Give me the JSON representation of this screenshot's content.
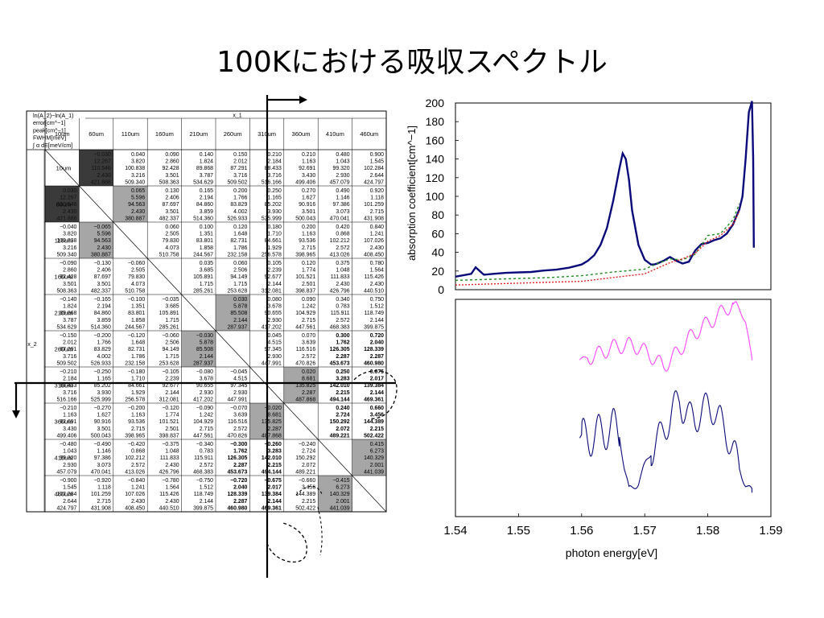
{
  "title": "100Kにおける吸収スペクトル",
  "table": {
    "corner_lines": [
      "ln(A_2)−ln(A_1)",
      "error[cm^−1]",
      "peak[cm^−1]",
      "FWHM[meV]",
      "∫ α dE[meV/cm]"
    ],
    "col_axis_label": "x_1",
    "row_axis_label": "x_2",
    "headers": [
      "10um",
      "60um",
      "110um",
      "160um",
      "210um",
      "260um",
      "310um",
      "360um",
      "410um",
      "460um"
    ],
    "cells": [
      [
        null,
        [
          "−0.030",
          "12.267",
          "110.546",
          "2.430",
          "421.888"
        ],
        [
          "0.040",
          "3.820",
          "100.838",
          "3.216",
          "509.340"
        ],
        [
          "0.090",
          "2.860",
          "92.428",
          "3.501",
          "508.363"
        ],
        [
          "0.140",
          "1.824",
          "89.868",
          "3.787",
          "534.629"
        ],
        [
          "0.150",
          "2.012",
          "87.291",
          "3.716",
          "509.502"
        ],
        [
          "0.210",
          "2.184",
          "88.433",
          "3.716",
          "516.166"
        ],
        [
          "0.210",
          "1.163",
          "92.691",
          "3.430",
          "499.406"
        ],
        [
          "0.480",
          "1.043",
          "99.320",
          "2.930",
          "457.079"
        ],
        [
          "0.900",
          "1.545",
          "102.284",
          "2.644",
          "424.797"
        ]
      ],
      [
        [
          "0.030",
          "12.267",
          "110.546",
          "2.430",
          "421.888"
        ],
        null,
        [
          "0.065",
          "5.596",
          "94.563",
          "2.430",
          "380.887"
        ],
        [
          "0.130",
          "2.406",
          "87.697",
          "3.501",
          "482.337"
        ],
        [
          "0.165",
          "2.194",
          "84.860",
          "3.859",
          "514.360"
        ],
        [
          "0.200",
          "1.766",
          "83.829",
          "4.002",
          "526.933"
        ],
        [
          "0.250",
          "1.165",
          "85.202",
          "3.930",
          "525.999"
        ],
        [
          "0.270",
          "1.627",
          "90.916",
          "3.501",
          "500.043"
        ],
        [
          "0.490",
          "1.146",
          "97.386",
          "3.073",
          "470.041"
        ],
        [
          "0.920",
          "1.118",
          "101.259",
          "2.715",
          "431.908"
        ]
      ],
      [
        [
          "−0.040",
          "3.820",
          "100.838",
          "3.216",
          "509.340"
        ],
        [
          "−0.065",
          "5.596",
          "94.563",
          "2.430",
          "380.887"
        ],
        null,
        [
          "0.060",
          "2.505",
          "79.830",
          "4.073",
          "510.758"
        ],
        [
          "0.100",
          "1.351",
          "83.801",
          "1.858",
          "244.567"
        ],
        [
          "0.120",
          "1.648",
          "82.731",
          "1.786",
          "232.158"
        ],
        [
          "0.180",
          "1.710",
          "84.661",
          "1.929",
          "256.578"
        ],
        [
          "0.200",
          "1.163",
          "93.536",
          "2.715",
          "398.965"
        ],
        [
          "0.420",
          "0.868",
          "102.212",
          "2.572",
          "413.026"
        ],
        [
          "0.840",
          "1.241",
          "107.026",
          "2.430",
          "408.450"
        ]
      ],
      [
        [
          "−0.090",
          "2.860",
          "92.428",
          "3.501",
          "508.363"
        ],
        [
          "−0.130",
          "2.406",
          "87.697",
          "3.501",
          "482.337"
        ],
        [
          "−0.060",
          "2.505",
          "79.830",
          "4.073",
          "510.758"
        ],
        null,
        [
          "0.035",
          "3.685",
          "105.891",
          "1.715",
          "285.261"
        ],
        [
          "0.060",
          "2.506",
          "94.149",
          "1.715",
          "253.628"
        ],
        [
          "0.105",
          "2.239",
          "92.677",
          "2.144",
          "312.081"
        ],
        [
          "0.120",
          "1.774",
          "101.521",
          "2.501",
          "398.837"
        ],
        [
          "0.375",
          "1.048",
          "111.833",
          "2.430",
          "426.796"
        ],
        [
          "0.780",
          "1.564",
          "115.426",
          "2.430",
          "440.510"
        ]
      ],
      [
        [
          "−0.140",
          "1.824",
          "89.868",
          "3.787",
          "534.629"
        ],
        [
          "−0.165",
          "2.194",
          "84.860",
          "3.859",
          "514.360"
        ],
        [
          "−0.100",
          "1.351",
          "83.801",
          "1.858",
          "244.567"
        ],
        [
          "−0.035",
          "3.685",
          "105.891",
          "1.715",
          "285.261"
        ],
        null,
        [
          "0.030",
          "5.878",
          "85.508",
          "2.144",
          "287.937"
        ],
        [
          "0.080",
          "3.678",
          "90.655",
          "2.930",
          "417.202"
        ],
        [
          "0.090",
          "1.242",
          "104.929",
          "2.715",
          "447.561"
        ],
        [
          "0.340",
          "0.783",
          "115.911",
          "2.572",
          "468.383"
        ],
        [
          "0.750",
          "1.512",
          "118.749",
          "2.144",
          "399.875"
        ]
      ],
      [
        [
          "−0.150",
          "2.012",
          "87.291",
          "3.716",
          "509.502"
        ],
        [
          "−0.200",
          "1.766",
          "83.829",
          "4.002",
          "526.933"
        ],
        [
          "−0.120",
          "1.648",
          "82.731",
          "1.786",
          "232.158"
        ],
        [
          "−0.060",
          "2.506",
          "94.149",
          "1.715",
          "253.628"
        ],
        [
          "−0.030",
          "5.878",
          "85.508",
          "2.144",
          "287.937"
        ],
        null,
        [
          "0.045",
          "4.515",
          "97.345",
          "2.930",
          "447.991"
        ],
        [
          "0.070",
          "3.639",
          "116.516",
          "2.572",
          "470.826"
        ],
        [
          "0.300",
          "1.762",
          "126.305",
          "2.287",
          "453.673"
        ],
        [
          "0.720",
          "2.040",
          "128.339",
          "2.287",
          "460.980"
        ]
      ],
      [
        [
          "−0.210",
          "2.184",
          "88.433",
          "3.716",
          "516.166"
        ],
        [
          "−0.250",
          "1.165",
          "85.202",
          "3.930",
          "525.999"
        ],
        [
          "−0.180",
          "1.710",
          "84.661",
          "1.929",
          "256.578"
        ],
        [
          "−0.105",
          "2.239",
          "92.677",
          "2.144",
          "312.081"
        ],
        [
          "−0.080",
          "3.678",
          "90.655",
          "2.930",
          "417.202"
        ],
        [
          "−0.045",
          "4.515",
          "97.345",
          "2.930",
          "447.991"
        ],
        null,
        [
          "0.020",
          "8.681",
          "135.825",
          "2.287",
          "487.868"
        ],
        [
          "0.250",
          "3.283",
          "142.010",
          "2.215",
          "494.144"
        ],
        [
          "0.675",
          "2.017",
          "139.384",
          "2.144",
          "469.361"
        ]
      ],
      [
        [
          "−0.210",
          "1.163",
          "92.691",
          "3.430",
          "499.406"
        ],
        [
          "−0.270",
          "1.627",
          "90.916",
          "3.501",
          "500.043"
        ],
        [
          "−0.200",
          "1.163",
          "93.536",
          "2.715",
          "398.965"
        ],
        [
          "−0.120",
          "1.774",
          "101.521",
          "2.501",
          "398.837"
        ],
        [
          "−0.090",
          "1.242",
          "104.929",
          "2.715",
          "447.561"
        ],
        [
          "−0.070",
          "3.639",
          "116.516",
          "2.572",
          "470.826"
        ],
        [
          "−0.020",
          "8.681",
          "135.825",
          "2.287",
          "487.868"
        ],
        null,
        [
          "0.240",
          "2.724",
          "150.292",
          "2.072",
          "489.221"
        ],
        [
          "0.660",
          "3.456",
          "144.389",
          "2.215",
          "502.422"
        ]
      ],
      [
        [
          "−0.480",
          "1.043",
          "99.320",
          "2.930",
          "457.079"
        ],
        [
          "−0.490",
          "1.146",
          "97.386",
          "3.073",
          "470.041"
        ],
        [
          "−0.420",
          "0.868",
          "102.212",
          "2.572",
          "413.026"
        ],
        [
          "−0.375",
          "1.048",
          "111.833",
          "2.430",
          "426.796"
        ],
        [
          "−0.340",
          "0.783",
          "115.911",
          "2.572",
          "468.383"
        ],
        [
          "−0.300",
          "1.762",
          "126.305",
          "2.287",
          "453.673"
        ],
        [
          "−0.260",
          "3.283",
          "142.010",
          "2.215",
          "494.144"
        ],
        [
          "−0.240",
          "2.724",
          "150.292",
          "2.072",
          "489.221"
        ],
        null,
        [
          "0.415",
          "6.273",
          "140.329",
          "2.001",
          "441.039"
        ]
      ],
      [
        [
          "−0.900",
          "1.545",
          "102.284",
          "2.644",
          "424.797"
        ],
        [
          "−0.920",
          "1.118",
          "101.259",
          "2.715",
          "431.908"
        ],
        [
          "−0.840",
          "1.241",
          "107.026",
          "2.430",
          "408.450"
        ],
        [
          "−0.780",
          "1.564",
          "115.426",
          "2.430",
          "440.510"
        ],
        [
          "−0.750",
          "1.512",
          "118.749",
          "2.144",
          "399.875"
        ],
        [
          "−0.720",
          "2.040",
          "128.339",
          "2.287",
          "460.980"
        ],
        [
          "−0.675",
          "2.017",
          "139.384",
          "2.144",
          "469.361"
        ],
        [
          "−0.660",
          "3.456",
          "144.389",
          "2.215",
          "502.422"
        ],
        [
          "−0.415",
          "6.273",
          "140.329",
          "2.001",
          "441.039"
        ],
        null
      ]
    ],
    "dark_cells": [
      [
        0,
        1
      ],
      [
        1,
        0
      ]
    ],
    "gray_cells": [
      [
        1,
        2
      ],
      [
        2,
        1
      ],
      [
        4,
        5
      ],
      [
        5,
        4
      ],
      [
        6,
        7
      ],
      [
        7,
        6
      ],
      [
        8,
        9
      ],
      [
        9,
        8
      ]
    ],
    "bold_cells": [
      [
        5,
        8
      ],
      [
        5,
        9
      ],
      [
        6,
        8
      ],
      [
        6,
        9
      ],
      [
        7,
        8
      ],
      [
        7,
        9
      ],
      [
        8,
        5
      ],
      [
        8,
        6
      ],
      [
        9,
        5
      ],
      [
        9,
        6
      ]
    ]
  },
  "colors": {
    "dark_cell": "#3a3a3a",
    "gray_cell": "#a6a6a6",
    "top_series": "#0a0a7a",
    "green_series": "#1f8a1f",
    "red_series": "#e02020",
    "magenta_series": "#ff44ff",
    "bottom_series": "#0a0a7a"
  },
  "chart_data": [
    {
      "type": "line",
      "ylabel": "absorption coefficient[cm^−1]",
      "ylim": [
        0,
        200
      ],
      "xlim": [
        1.54,
        1.59
      ],
      "yticks": [
        "0",
        "20",
        "40",
        "60",
        "80",
        "100",
        "120",
        "140",
        "160",
        "180",
        "200"
      ],
      "grid": false,
      "series": [
        {
          "style": "solid",
          "x": [
            1.54,
            1.5425,
            1.5432,
            1.5445,
            1.546,
            1.548,
            1.55,
            1.552,
            1.554,
            1.556,
            1.558,
            1.56,
            1.561,
            1.562,
            1.563,
            1.564,
            1.565,
            1.566,
            1.5665,
            1.567,
            1.5675,
            1.568,
            1.569,
            1.57,
            1.571,
            1.5715,
            1.572,
            1.573,
            1.574,
            1.575,
            1.576,
            1.577,
            1.578,
            1.579,
            1.58,
            1.581,
            1.582,
            1.583,
            1.584,
            1.585,
            1.5855,
            1.586,
            1.5865,
            1.587,
            1.5872,
            1.5873
          ],
          "y": [
            14,
            17,
            24,
            16,
            17,
            18,
            18.5,
            19,
            20.5,
            21.5,
            23.5,
            27,
            31,
            37,
            48,
            66,
            95,
            130,
            146,
            140,
            118,
            85,
            48,
            32,
            27,
            27,
            28,
            31,
            35,
            31,
            28,
            30,
            42,
            49,
            50,
            53,
            55,
            60,
            70,
            86,
            100,
            140,
            190,
            202,
            140,
            45
          ]
        },
        {
          "style": "dashed",
          "x": [
            1.54,
            1.545,
            1.55,
            1.555,
            1.56,
            1.565,
            1.57,
            1.572,
            1.574,
            1.576,
            1.578,
            1.58,
            1.582,
            1.584,
            1.585
          ],
          "y": [
            10,
            11,
            12,
            13,
            15,
            19,
            22,
            28,
            33,
            32,
            38,
            58,
            60,
            75,
            92
          ]
        },
        {
          "style": "dotted",
          "x": [
            1.54,
            1.545,
            1.55,
            1.555,
            1.56,
            1.565,
            1.57,
            1.572,
            1.574,
            1.576,
            1.578,
            1.58,
            1.582,
            1.584,
            1.585
          ],
          "y": [
            5,
            6,
            7,
            8,
            9,
            13,
            17,
            23,
            29,
            33,
            39,
            52,
            58,
            70,
            84
          ]
        }
      ]
    },
    {
      "type": "line",
      "xlabel": "photon energy[eV]",
      "xlim": [
        1.54,
        1.59
      ],
      "xticks": [
        "1.54",
        "1.55",
        "1.56",
        "1.57",
        "1.58",
        "1.59"
      ],
      "grid": false,
      "series": [
        {
          "style": "solid",
          "x": [
            1.5597,
            1.562,
            1.565,
            1.5675,
            1.569,
            1.571,
            1.573,
            1.575,
            1.577,
            1.579,
            1.581,
            1.583,
            1.5845,
            1.586,
            1.587
          ],
          "y": [
            0.72,
            0.74,
            0.78,
            0.79,
            0.78,
            0.74,
            0.69,
            0.75,
            0.82,
            0.87,
            0.91,
            0.96,
            0.98,
            0.9,
            0.72
          ]
        },
        {
          "style": "solid",
          "x": [
            1.5597,
            1.562,
            1.564,
            1.565,
            1.566,
            1.5668,
            1.5675,
            1.568,
            1.569,
            1.57,
            1.571,
            1.572,
            1.5725,
            1.573,
            1.574,
            1.575,
            1.5755,
            1.576,
            1.577,
            1.578,
            1.579,
            1.58,
            1.581,
            1.582,
            1.583,
            1.584,
            1.585,
            1.586,
            1.5865,
            1.587
          ],
          "y": [
            0.36,
            0.37,
            0.4,
            0.41,
            0.38,
            0.22,
            0.12,
            0.13,
            0.16,
            0.23,
            0.3,
            0.35,
            0.37,
            0.4,
            0.45,
            0.52,
            0.55,
            0.5,
            0.46,
            0.45,
            0.48,
            0.51,
            0.49,
            0.44,
            0.38,
            0.31,
            0.22,
            0.15,
            0.13,
            0.11
          ]
        }
      ]
    }
  ]
}
